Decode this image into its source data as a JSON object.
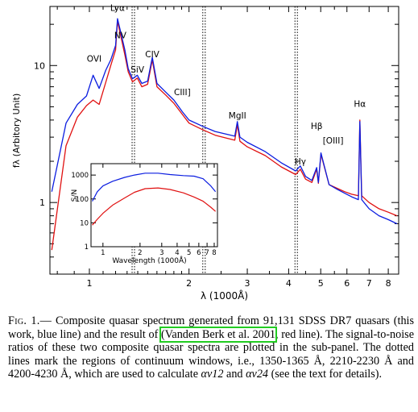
{
  "chart_data": [
    {
      "type": "line",
      "title": "",
      "xlabel": "λ (1000Å)",
      "ylabel": "fλ (Arbitory Unit)",
      "xscale": "log",
      "yscale": "log",
      "xlim": [
        0.76,
        8.6
      ],
      "ylim": [
        0.3,
        27
      ],
      "xticks": [
        "1",
        "2",
        "3",
        "4",
        "5",
        "6",
        "7",
        "8"
      ],
      "yticks": [
        "1",
        "10"
      ],
      "series": [
        {
          "color": "#0b1de0",
          "x": [
            0.77,
            0.85,
            0.92,
            0.98,
            1.026,
            1.07,
            1.12,
            1.16,
            1.2,
            1.216,
            1.24,
            1.28,
            1.31,
            1.35,
            1.396,
            1.44,
            1.5,
            1.549,
            1.6,
            1.7,
            1.8,
            1.909,
            2.0,
            2.2,
            2.4,
            2.6,
            2.75,
            2.8,
            2.85,
            3.0,
            3.4,
            3.8,
            4.2,
            4.34,
            4.5,
            4.7,
            4.861,
            4.92,
            5.007,
            5.3,
            5.6,
            5.9,
            6.2,
            6.5,
            6.563,
            6.65,
            7.0,
            7.5,
            8.0,
            8.5
          ],
          "y": [
            1.2,
            3.8,
            5.2,
            6.0,
            8.5,
            6.8,
            9.2,
            11,
            14,
            22,
            18,
            13,
            9.5,
            8,
            8.5,
            7.4,
            7.7,
            11.5,
            7.4,
            6.4,
            5.6,
            4.6,
            4.0,
            3.6,
            3.3,
            3.15,
            3.05,
            3.9,
            3.0,
            2.75,
            2.35,
            1.95,
            1.7,
            1.85,
            1.55,
            1.45,
            1.8,
            1.4,
            2.3,
            1.35,
            1.25,
            1.17,
            1.1,
            1.05,
            3.9,
            1.05,
            0.9,
            0.8,
            0.75,
            0.7
          ]
        },
        {
          "color": "#e01010",
          "x": [
            0.77,
            0.85,
            0.92,
            0.98,
            1.026,
            1.07,
            1.12,
            1.16,
            1.2,
            1.216,
            1.24,
            1.28,
            1.31,
            1.35,
            1.396,
            1.44,
            1.5,
            1.549,
            1.6,
            1.7,
            1.8,
            1.909,
            2.0,
            2.2,
            2.4,
            2.6,
            2.75,
            2.8,
            2.85,
            3.0,
            3.4,
            3.8,
            4.2,
            4.34,
            4.5,
            4.7,
            4.861,
            4.92,
            5.007,
            5.3,
            5.6,
            5.9,
            6.2,
            6.5,
            6.563,
            6.65,
            7.0,
            7.5,
            8.0,
            8.5
          ],
          "y": [
            0.45,
            2.6,
            4.2,
            5.1,
            5.6,
            5.2,
            7.5,
            10,
            13,
            21,
            17,
            12,
            9,
            7.6,
            8.1,
            7.0,
            7.3,
            11,
            7.0,
            6.1,
            5.3,
            4.4,
            3.8,
            3.4,
            3.1,
            2.95,
            2.85,
            3.7,
            2.8,
            2.55,
            2.2,
            1.82,
            1.6,
            1.75,
            1.48,
            1.4,
            1.75,
            1.38,
            2.25,
            1.35,
            1.27,
            1.2,
            1.15,
            1.12,
            4.0,
            1.12,
            1.0,
            0.9,
            0.85,
            0.8
          ]
        }
      ],
      "line_labels": [
        {
          "text": "OVI",
          "x": 1.034,
          "y": 10.7
        },
        {
          "text": "Lyα",
          "x": 1.216,
          "y": 25
        },
        {
          "text": "NV",
          "x": 1.24,
          "y": 15.8
        },
        {
          "text": "SiV",
          "x": 1.397,
          "y": 8.9
        },
        {
          "text": "CIV",
          "x": 1.549,
          "y": 11.5
        },
        {
          "text": "CIII]",
          "x": 1.909,
          "y": 6.1
        },
        {
          "text": "MgII",
          "x": 2.8,
          "y": 4.1
        },
        {
          "text": "Hγ",
          "x": 4.34,
          "y": 1.9
        },
        {
          "text": "Hβ",
          "x": 4.86,
          "y": 3.45
        },
        {
          "text": "[OIII]",
          "x": 5.45,
          "y": 2.7
        },
        {
          "text": "Hα",
          "x": 6.563,
          "y": 5.0
        }
      ],
      "continuum_windows": [
        1.3575,
        2.22,
        4.215
      ]
    },
    {
      "type": "line",
      "title": "",
      "xlabel": "Wavelength (1000Å)",
      "ylabel": "S/N",
      "xscale": "log",
      "yscale": "log",
      "xlim": [
        0.8,
        8.5
      ],
      "ylim": [
        1,
        3000
      ],
      "xticks": [
        "1",
        "2",
        "3",
        "4",
        "5",
        "6",
        "7",
        "8"
      ],
      "yticks": [
        "1",
        "10",
        "100",
        "1000"
      ],
      "series": [
        {
          "color": "#0b1de0",
          "x": [
            0.82,
            0.9,
            1.0,
            1.2,
            1.5,
            1.8,
            2.2,
            2.8,
            3.5,
            4.5,
            5.5,
            6.5,
            7.5,
            8.2
          ],
          "y": [
            80,
            200,
            350,
            550,
            800,
            1000,
            1200,
            1200,
            1050,
            950,
            900,
            700,
            350,
            200
          ]
        },
        {
          "color": "#e01010",
          "x": [
            0.82,
            0.9,
            1.0,
            1.2,
            1.5,
            1.8,
            2.2,
            2.8,
            3.5,
            4.5,
            5.5,
            6.5,
            7.5,
            8.2
          ],
          "y": [
            8,
            14,
            25,
            55,
            110,
            190,
            270,
            290,
            250,
            180,
            120,
            80,
            45,
            30
          ]
        }
      ]
    }
  ],
  "caption": {
    "lead": "Fig. 1.—",
    "text1": " Composite quasar spectrum generated from 91,131 SDSS DR7 quasars (this work, blue line) and the result of ",
    "citation": "(Vanden Berk et al. 2001",
    "text2": ", red line). The signal-to-noise ratios of these two composite quasar spectra are plotted in the sub-panel. The dotted lines mark the regions of continuum windows, i.e., 1350-1365 Å, 2210-2230 Å and 4200-4230 Å, which are used to calculate ",
    "alpha12": "αν12",
    "and": " and ",
    "alpha24": "αν24",
    "text3": " (see the text for details)."
  }
}
